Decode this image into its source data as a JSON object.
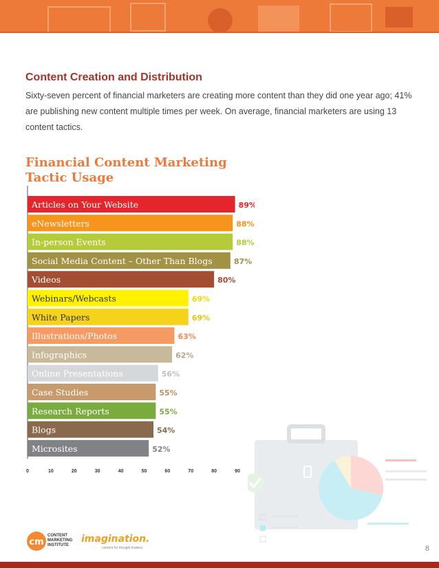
{
  "header": {
    "banner_color": "#ee7a3a"
  },
  "section": {
    "title": "Content Creation and Distribution",
    "intro": "Sixty-seven percent of financial marketers are creating more content than they did one year ago; 41% are publishing new content multiple times per week.  On average, financial marketers are using 13 content tactics."
  },
  "chart_title": "Financial Content Marketing Tactic Usage",
  "chart_data": {
    "type": "bar",
    "orientation": "horizontal",
    "categories": [
      "Articles on Your Website",
      "eNewsletters",
      "In-person Events",
      "Social Media Content – Other Than Blogs",
      "Videos",
      "Webinars/Webcasts",
      "White Papers",
      "Illustrations/Photos",
      "Infographics",
      "Online Presentations",
      "Case Studies",
      "Research Reports",
      "Blogs",
      "Microsites"
    ],
    "values": [
      89,
      88,
      88,
      87,
      80,
      69,
      69,
      63,
      62,
      56,
      55,
      55,
      54,
      52
    ],
    "value_labels": [
      "89%",
      "88%",
      "88%",
      "87%",
      "80%",
      "69%",
      "69%",
      "63%",
      "62%",
      "56%",
      "55%",
      "55%",
      "54%",
      "52%"
    ],
    "colors": [
      "#e4252b",
      "#f7941d",
      "#b5cc3a",
      "#a39146",
      "#a34e33",
      "#fff200",
      "#f5d31a",
      "#f49a63",
      "#c9b99b",
      "#d5d8db",
      "#c79b6d",
      "#7aab3e",
      "#8a6a4d",
      "#808285"
    ],
    "label_colors": [
      "#e4252b",
      "#f7941d",
      "#b5cc3a",
      "#a39146",
      "#a34e33",
      "#f0d800",
      "#e8c510",
      "#f08a50",
      "#b5a48a",
      "#bcbfc2",
      "#c09060",
      "#7aab3e",
      "#8a6a4d",
      "#808285"
    ],
    "xlim": [
      0,
      90
    ],
    "x_ticks": [
      "0",
      "10",
      "20",
      "30",
      "40",
      "50",
      "60",
      "70",
      "80",
      "90"
    ],
    "grid": false
  },
  "footer": {
    "page_number": "8",
    "cmi_text": "CONTENT MARKETING INSTITUTE",
    "cmi_mark": "cm",
    "imagination": "imagination.",
    "imagination_sub": "content for thought leaders"
  }
}
